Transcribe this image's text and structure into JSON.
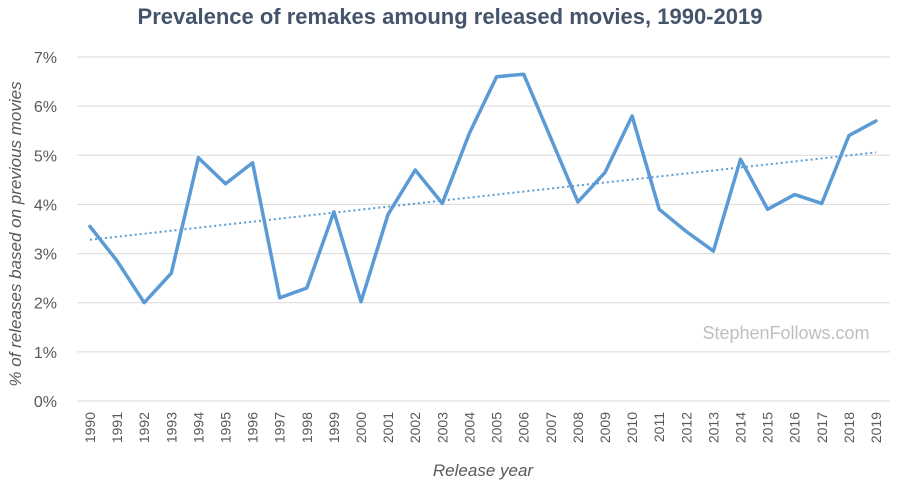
{
  "chart_data": {
    "type": "line",
    "title": "Prevalence of remakes amoung released movies, 1990-2019",
    "xlabel": "Release year",
    "ylabel": "% of releases based on previous movies",
    "x": [
      "1990",
      "1991",
      "1992",
      "1993",
      "1994",
      "1995",
      "1996",
      "1997",
      "1998",
      "1999",
      "2000",
      "2001",
      "2002",
      "2003",
      "2004",
      "2005",
      "2006",
      "2007",
      "2008",
      "2009",
      "2010",
      "2011",
      "2012",
      "2013",
      "2014",
      "2015",
      "2016",
      "2017",
      "2018",
      "2019"
    ],
    "series": [
      {
        "values": [
          3.55,
          2.85,
          2.0,
          2.6,
          4.95,
          4.42,
          4.85,
          2.1,
          2.3,
          3.85,
          2.02,
          3.8,
          4.7,
          4.02,
          5.45,
          6.6,
          6.65,
          5.35,
          4.05,
          4.65,
          5.8,
          3.9,
          3.45,
          3.05,
          4.92,
          3.9,
          4.2,
          4.02,
          5.4,
          5.7
        ],
        "color": "#5b9bd5"
      }
    ],
    "trendline": {
      "type": "linear",
      "style": "dotted",
      "color": "#5b9bd5"
    },
    "y_ticks": [
      "0%",
      "1%",
      "2%",
      "3%",
      "4%",
      "5%",
      "6%",
      "7%"
    ],
    "ylim": [
      0,
      7
    ],
    "grid": true,
    "legend": "none"
  },
  "watermark": "StephenFollows.com"
}
